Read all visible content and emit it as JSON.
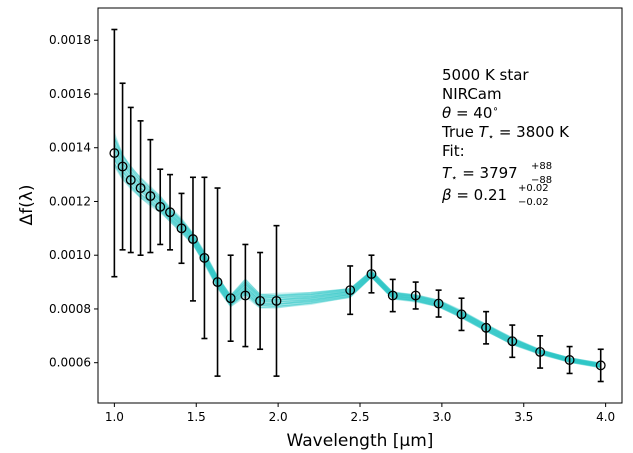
{
  "chart_data": {
    "type": "scatter",
    "title": "",
    "xlabel": "Wavelength [μm]",
    "ylabel": "Δf(λ)",
    "xlim": [
      0.9,
      4.1
    ],
    "ylim": [
      0.00045,
      0.00192
    ],
    "xticks": [
      1.0,
      1.5,
      2.0,
      2.5,
      3.0,
      3.5,
      4.0
    ],
    "xtick_labels": [
      "1.0",
      "1.5",
      "2.0",
      "2.5",
      "3.0",
      "3.5",
      "4.0"
    ],
    "yticks": [
      0.0006,
      0.0008,
      0.001,
      0.0012,
      0.0014,
      0.0016,
      0.0018
    ],
    "ytick_labels": [
      "0.0006",
      "0.0008",
      "0.0010",
      "0.0012",
      "0.0014",
      "0.0016",
      "0.0018"
    ],
    "grid": false,
    "band_color": "#26c6c6",
    "series": [
      {
        "x": [
          1.0,
          1.05,
          1.1,
          1.16,
          1.22,
          1.28,
          1.34,
          1.41,
          1.48,
          1.55,
          1.63,
          1.71,
          1.8,
          1.89,
          1.99,
          2.44,
          2.57,
          2.7,
          2.84,
          2.98,
          3.12,
          3.27,
          3.43,
          3.6,
          3.78,
          3.97
        ],
        "y": [
          0.00138,
          0.00133,
          0.00128,
          0.00125,
          0.00122,
          0.00118,
          0.00116,
          0.0011,
          0.00106,
          0.00099,
          0.0009,
          0.00084,
          0.00085,
          0.00083,
          0.00083,
          0.00087,
          0.00093,
          0.00085,
          0.00085,
          0.00082,
          0.00078,
          0.00073,
          0.00068,
          0.00064,
          0.00061,
          0.00059
        ],
        "yerr": [
          0.00046,
          0.00031,
          0.00027,
          0.00025,
          0.00021,
          0.00014,
          0.00014,
          0.00013,
          0.00023,
          0.0003,
          0.00035,
          0.00016,
          0.00019,
          0.00018,
          0.00028,
          9e-05,
          7e-05,
          6e-05,
          5e-05,
          5e-05,
          6e-05,
          6e-05,
          6e-05,
          6e-05,
          5e-05,
          6e-05
        ]
      }
    ],
    "model_band": {
      "x": [
        1.0,
        1.05,
        1.1,
        1.16,
        1.22,
        1.28,
        1.34,
        1.41,
        1.48,
        1.55,
        1.63,
        1.71,
        1.8,
        1.89,
        1.99,
        2.2,
        2.44,
        2.57,
        2.7,
        2.84,
        2.98,
        3.12,
        3.27,
        3.43,
        3.6,
        3.78,
        3.97
      ],
      "y": [
        0.00139,
        0.00133,
        0.00129,
        0.00125,
        0.00122,
        0.00119,
        0.00115,
        0.00111,
        0.00106,
        0.00099,
        0.0009,
        0.00083,
        0.00088,
        0.00083,
        0.00083,
        0.00084,
        0.00086,
        0.00093,
        0.00085,
        0.00084,
        0.00082,
        0.00078,
        0.00073,
        0.00068,
        0.00064,
        0.00061,
        0.00059
      ],
      "spread": [
        0.00014,
        0.00011,
        0.0001,
        9e-05,
        8e-05,
        7e-05,
        6e-05,
        6e-05,
        5e-05,
        5e-05,
        5e-05,
        5e-05,
        7e-05,
        6e-05,
        6e-05,
        5e-05,
        4e-05,
        3e-05,
        3e-05,
        3e-05,
        3e-05,
        3e-05,
        3e-05,
        3e-05,
        2e-05,
        2e-05,
        2e-05
      ]
    },
    "annotation": {
      "line1": "5000 K star",
      "line2": "NIRCam",
      "theta_sym": "θ",
      "theta_val": " = 40",
      "theta_deg": "∘",
      "true_prefix": "True ",
      "true_T": "T",
      "true_star": "⋆",
      "true_val": " = 3800 K",
      "fit": "Fit:",
      "fit_T": "T",
      "fit_star": "⋆",
      "fit_val": " = 3797",
      "fit_up": "+88",
      "fit_down": "−88",
      "beta_sym": "β",
      "beta_val": " = 0.21",
      "beta_up": "+0.02",
      "beta_down": "−0.02"
    }
  }
}
